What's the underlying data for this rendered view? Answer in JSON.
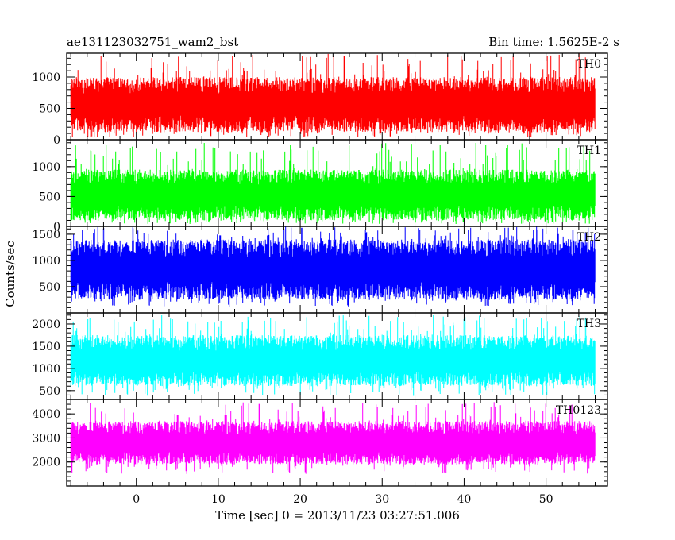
{
  "header": {
    "title": "ae131123032751_wam2_bst",
    "bin_time": "Bin time: 1.5625E-2 s"
  },
  "chart_data": {
    "type": "line",
    "xlabel": "Time [sec] 0 = 2013/11/23 03:27:51.006",
    "ylabel": "Counts/sec",
    "xlim": [
      -8.5,
      57.5
    ],
    "x_data_range": [
      -8,
      56
    ],
    "x_ticks": [
      0,
      10,
      20,
      30,
      40,
      50
    ],
    "x_tick_labels": [
      "0",
      "10",
      "20",
      "30",
      "40",
      "50"
    ],
    "grid": false,
    "panels": [
      {
        "name": "TH0",
        "color": "#ff0000",
        "ylim": [
          0,
          1380
        ],
        "y_ticks": [
          0,
          500,
          1000
        ],
        "y_tick_labels": [
          "0",
          "500",
          "1000"
        ],
        "band": [
          120,
          1000
        ],
        "low_peak": 40,
        "high_peak": 1380,
        "mean": 560
      },
      {
        "name": "TH1",
        "color": "#00ff00",
        "ylim": [
          0,
          1450
        ],
        "y_ticks": [
          0,
          500,
          1000
        ],
        "y_tick_labels": [
          "0",
          "500",
          "1000"
        ],
        "band": [
          100,
          950
        ],
        "low_peak": 40,
        "high_peak": 1400,
        "mean": 520
      },
      {
        "name": "TH2",
        "color": "#0000ff",
        "ylim": [
          0,
          1650
        ],
        "y_ticks": [
          500,
          1000,
          1500
        ],
        "y_tick_labels": [
          "500",
          "1000",
          "1500"
        ],
        "band": [
          250,
          1400
        ],
        "low_peak": 120,
        "high_peak": 1650,
        "mean": 820
      },
      {
        "name": "TH3",
        "color": "#00ffff",
        "ylim": [
          300,
          2250
        ],
        "y_ticks": [
          500,
          1000,
          1500,
          2000
        ],
        "y_tick_labels": [
          "500",
          "1000",
          "1500",
          "2000"
        ],
        "band": [
          600,
          1750
        ],
        "low_peak": 380,
        "high_peak": 2200,
        "mean": 1150
      },
      {
        "name": "TH0123",
        "color": "#ff00ff",
        "ylim": [
          1000,
          4600
        ],
        "y_ticks": [
          2000,
          3000,
          4000
        ],
        "y_tick_labels": [
          "2000",
          "3000",
          "4000"
        ],
        "band": [
          1900,
          3700
        ],
        "low_peak": 1500,
        "high_peak": 4500,
        "mean": 2750
      }
    ]
  }
}
